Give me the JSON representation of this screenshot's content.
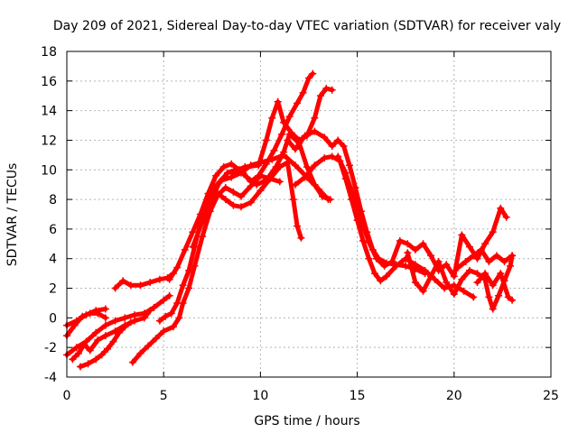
{
  "chart_data": {
    "type": "scatter",
    "title": "Day 209 of 2021, Sidereal Day-to-day VTEC variation (SDTVAR) for receiver valy",
    "xlabel": "GPS time / hours",
    "ylabel": "SDTVAR / TECUs",
    "xlim": [
      0,
      25
    ],
    "ylim": [
      -4,
      18
    ],
    "xticks": [
      0,
      5,
      10,
      15,
      20,
      25
    ],
    "yticks": [
      -4,
      -2,
      0,
      2,
      4,
      6,
      8,
      10,
      12,
      14,
      16,
      18
    ],
    "grid": true,
    "marker": "+",
    "color": "#ff0000",
    "series": [
      {
        "name": "track-1",
        "points": [
          [
            0,
            -0.5
          ],
          [
            0.5,
            -0.2
          ],
          [
            1,
            0.2
          ],
          [
            1.5,
            0.5
          ],
          [
            2,
            0.6
          ]
        ]
      },
      {
        "name": "track-2",
        "points": [
          [
            0,
            -1.2
          ],
          [
            0.4,
            -0.5
          ],
          [
            0.8,
            0.1
          ],
          [
            1.2,
            0.3
          ],
          [
            1.6,
            0.3
          ],
          [
            2,
            0
          ]
        ]
      },
      {
        "name": "track-3",
        "points": [
          [
            0,
            -2.5
          ],
          [
            0.5,
            -2.0
          ],
          [
            1,
            -1.6
          ],
          [
            1.5,
            -1.0
          ],
          [
            2,
            -0.5
          ],
          [
            2.5,
            -0.2
          ],
          [
            3,
            0.0
          ],
          [
            3.5,
            0.2
          ],
          [
            4,
            0.3
          ],
          [
            4.5,
            0.7
          ],
          [
            5,
            1.2
          ],
          [
            5.3,
            1.5
          ]
        ]
      },
      {
        "name": "track-4",
        "points": [
          [
            0.3,
            -2.8
          ],
          [
            0.6,
            -2.4
          ],
          [
            0.9,
            -1.8
          ],
          [
            1.2,
            -2.2
          ],
          [
            1.6,
            -1.5
          ],
          [
            2,
            -1.2
          ],
          [
            2.5,
            -0.9
          ],
          [
            3,
            -0.5
          ],
          [
            3.5,
            -0.2
          ],
          [
            4,
            0
          ],
          [
            4.3,
            0.5
          ]
        ]
      },
      {
        "name": "track-5",
        "points": [
          [
            0.7,
            -3.3
          ],
          [
            1.1,
            -3.1
          ],
          [
            1.5,
            -2.8
          ],
          [
            1.8,
            -2.5
          ],
          [
            2.1,
            -2.1
          ],
          [
            2.4,
            -1.6
          ],
          [
            2.7,
            -1.0
          ],
          [
            3.0,
            -0.6
          ],
          [
            3.3,
            -0.3
          ]
        ]
      },
      {
        "name": "track-6",
        "points": [
          [
            2.5,
            2.0
          ],
          [
            2.9,
            2.5
          ],
          [
            3.3,
            2.2
          ],
          [
            3.8,
            2.2
          ],
          [
            4.3,
            2.4
          ],
          [
            4.8,
            2.6
          ],
          [
            5.2,
            2.7
          ],
          [
            5.5,
            3.0
          ]
        ]
      },
      {
        "name": "track-7",
        "points": [
          [
            3.4,
            -3.0
          ],
          [
            3.8,
            -2.4
          ],
          [
            4.2,
            -1.9
          ],
          [
            4.6,
            -1.4
          ],
          [
            5.0,
            -0.9
          ],
          [
            5.5,
            -0.6
          ],
          [
            5.8,
            0.0
          ],
          [
            6.0,
            1.0
          ],
          [
            6.3,
            2.0
          ],
          [
            6.6,
            3.5
          ],
          [
            7.0,
            5.5
          ],
          [
            7.4,
            7.2
          ],
          [
            7.8,
            8.3
          ],
          [
            8.2,
            8.8
          ],
          [
            8.6,
            8.5
          ],
          [
            9.0,
            8.2
          ],
          [
            9.5,
            8.9
          ],
          [
            10.0,
            9.6
          ],
          [
            10.5,
            9.4
          ],
          [
            11.0,
            9.2
          ]
        ]
      },
      {
        "name": "track-8",
        "points": [
          [
            4.8,
            -0.2
          ],
          [
            5.1,
            0.1
          ],
          [
            5.4,
            0.3
          ],
          [
            5.7,
            1.0
          ],
          [
            6.0,
            2.2
          ],
          [
            6.3,
            3.2
          ],
          [
            6.6,
            4.8
          ],
          [
            6.9,
            6.4
          ],
          [
            7.2,
            7.8
          ],
          [
            7.6,
            8.8
          ],
          [
            8.0,
            9.3
          ],
          [
            8.5,
            9.5
          ],
          [
            9.0,
            9.8
          ],
          [
            9.5,
            10.3
          ],
          [
            10.0,
            10.5
          ],
          [
            10.6,
            10.7
          ],
          [
            11.2,
            11.0
          ],
          [
            11.8,
            10.3
          ],
          [
            12.4,
            9.5
          ],
          [
            13.0,
            8.7
          ],
          [
            13.5,
            8.0
          ]
        ]
      },
      {
        "name": "track-9",
        "points": [
          [
            5.3,
            2.6
          ],
          [
            5.7,
            3.4
          ],
          [
            6.1,
            4.6
          ],
          [
            6.5,
            5.8
          ],
          [
            6.9,
            7.0
          ],
          [
            7.3,
            8.4
          ],
          [
            7.7,
            9.6
          ],
          [
            8.1,
            10.2
          ],
          [
            8.5,
            10.4
          ],
          [
            8.9,
            10.0
          ],
          [
            9.3,
            9.5
          ],
          [
            9.8,
            9.0
          ],
          [
            10.3,
            9.3
          ],
          [
            10.8,
            10.2
          ],
          [
            11.2,
            11.2
          ],
          [
            11.5,
            12.4
          ],
          [
            12.0,
            11.8
          ],
          [
            12.4,
            10.2
          ],
          [
            12.8,
            9.0
          ],
          [
            13.2,
            8.2
          ],
          [
            13.6,
            8.0
          ]
        ]
      },
      {
        "name": "track-10",
        "points": [
          [
            6.5,
            4.8
          ],
          [
            7.0,
            6.5
          ],
          [
            7.4,
            7.8
          ],
          [
            7.8,
            8.4
          ],
          [
            8.2,
            8.0
          ],
          [
            8.6,
            7.6
          ],
          [
            9.0,
            7.5
          ],
          [
            9.5,
            7.8
          ],
          [
            10.0,
            8.6
          ],
          [
            10.5,
            9.4
          ],
          [
            11.0,
            10.2
          ],
          [
            11.4,
            10.5
          ],
          [
            11.7,
            8.0
          ],
          [
            11.9,
            6.2
          ],
          [
            12.1,
            5.4
          ]
        ]
      },
      {
        "name": "track-11",
        "points": [
          [
            7.4,
            7.8
          ],
          [
            7.9,
            9.2
          ],
          [
            8.3,
            9.8
          ],
          [
            8.7,
            10.0
          ],
          [
            9.1,
            9.8
          ],
          [
            9.5,
            9.2
          ],
          [
            9.9,
            9.6
          ],
          [
            10.3,
            10.4
          ],
          [
            10.7,
            11.3
          ],
          [
            11.1,
            12.4
          ],
          [
            11.5,
            13.6
          ],
          [
            11.9,
            14.5
          ],
          [
            12.2,
            15.2
          ],
          [
            12.5,
            16.2
          ],
          [
            12.7,
            16.5
          ]
        ]
      },
      {
        "name": "track-12",
        "points": [
          [
            8.5,
            9.8
          ],
          [
            9.2,
            10.2
          ],
          [
            9.9,
            10.3
          ],
          [
            10.3,
            12.0
          ],
          [
            10.6,
            13.5
          ],
          [
            10.9,
            14.6
          ],
          [
            11.2,
            13.2
          ],
          [
            11.6,
            12.5
          ],
          [
            12.0,
            12.0
          ],
          [
            12.4,
            12.3
          ],
          [
            12.8,
            13.5
          ],
          [
            13.1,
            15.0
          ],
          [
            13.4,
            15.5
          ],
          [
            13.7,
            15.4
          ]
        ]
      },
      {
        "name": "track-13",
        "points": [
          [
            11.4,
            12.0
          ],
          [
            11.8,
            11.4
          ],
          [
            12.3,
            12.3
          ],
          [
            12.8,
            12.6
          ],
          [
            13.3,
            12.2
          ],
          [
            13.7,
            11.6
          ],
          [
            14.0,
            12.0
          ],
          [
            14.3,
            11.6
          ],
          [
            14.6,
            10.3
          ],
          [
            14.9,
            8.8
          ],
          [
            15.2,
            7.2
          ],
          [
            15.5,
            5.8
          ],
          [
            15.8,
            4.6
          ],
          [
            16.1,
            4.0
          ],
          [
            16.5,
            3.7
          ],
          [
            17.0,
            3.6
          ],
          [
            17.5,
            3.5
          ],
          [
            18.0,
            3.3
          ],
          [
            18.5,
            3.0
          ]
        ]
      },
      {
        "name": "track-14",
        "points": [
          [
            11.8,
            9.0
          ],
          [
            12.3,
            9.5
          ],
          [
            12.8,
            10.3
          ],
          [
            13.3,
            10.8
          ],
          [
            13.7,
            10.9
          ],
          [
            14.1,
            10.6
          ],
          [
            14.4,
            9.4
          ],
          [
            14.7,
            8.0
          ],
          [
            15.0,
            6.6
          ],
          [
            15.3,
            5.2
          ],
          [
            15.6,
            4.0
          ],
          [
            15.9,
            3.0
          ],
          [
            16.2,
            2.5
          ],
          [
            16.5,
            2.8
          ],
          [
            17.0,
            3.5
          ],
          [
            17.5,
            4.0
          ],
          [
            18.0,
            3.6
          ],
          [
            18.5,
            3.2
          ],
          [
            19.0,
            2.6
          ],
          [
            19.5,
            2.0
          ],
          [
            20.0,
            2.2
          ],
          [
            20.5,
            1.8
          ],
          [
            21.0,
            1.4
          ]
        ]
      },
      {
        "name": "track-15",
        "points": [
          [
            14.0,
            10.9
          ],
          [
            14.4,
            9.8
          ],
          [
            14.8,
            8.2
          ],
          [
            15.2,
            6.6
          ],
          [
            15.6,
            5.1
          ],
          [
            16.0,
            4.0
          ],
          [
            16.4,
            3.5
          ],
          [
            16.8,
            3.8
          ],
          [
            17.2,
            5.2
          ],
          [
            17.6,
            5.0
          ],
          [
            18.0,
            4.6
          ],
          [
            18.4,
            5.0
          ],
          [
            18.8,
            4.2
          ],
          [
            19.2,
            3.2
          ],
          [
            19.6,
            3.6
          ],
          [
            20.0,
            2.8
          ],
          [
            20.4,
            5.6
          ],
          [
            20.8,
            4.8
          ],
          [
            21.2,
            4.0
          ],
          [
            21.6,
            5.0
          ],
          [
            22.0,
            5.8
          ],
          [
            22.4,
            7.4
          ],
          [
            22.7,
            6.8
          ]
        ]
      },
      {
        "name": "track-16",
        "points": [
          [
            17.6,
            4.4
          ],
          [
            18.0,
            2.4
          ],
          [
            18.4,
            1.8
          ],
          [
            18.8,
            2.8
          ],
          [
            19.2,
            3.8
          ],
          [
            19.6,
            2.4
          ],
          [
            20.0,
            1.6
          ],
          [
            20.4,
            2.6
          ],
          [
            20.8,
            3.2
          ],
          [
            21.2,
            3.0
          ],
          [
            21.6,
            2.6
          ],
          [
            21.8,
            1.4
          ],
          [
            22.0,
            0.6
          ],
          [
            22.3,
            1.5
          ],
          [
            22.6,
            2.5
          ],
          [
            22.9,
            3.5
          ],
          [
            23.0,
            4.2
          ]
        ]
      },
      {
        "name": "track-17",
        "points": [
          [
            20.2,
            3.4
          ],
          [
            20.6,
            3.8
          ],
          [
            21.0,
            4.2
          ],
          [
            21.4,
            4.6
          ],
          [
            21.8,
            3.8
          ],
          [
            22.2,
            4.2
          ],
          [
            22.6,
            3.8
          ],
          [
            23.0,
            4.2
          ]
        ]
      },
      {
        "name": "track-18",
        "points": [
          [
            21.2,
            2.4
          ],
          [
            21.6,
            3.0
          ],
          [
            22.0,
            2.2
          ],
          [
            22.4,
            3.0
          ],
          [
            22.8,
            1.4
          ],
          [
            23.0,
            1.2
          ]
        ]
      }
    ]
  }
}
